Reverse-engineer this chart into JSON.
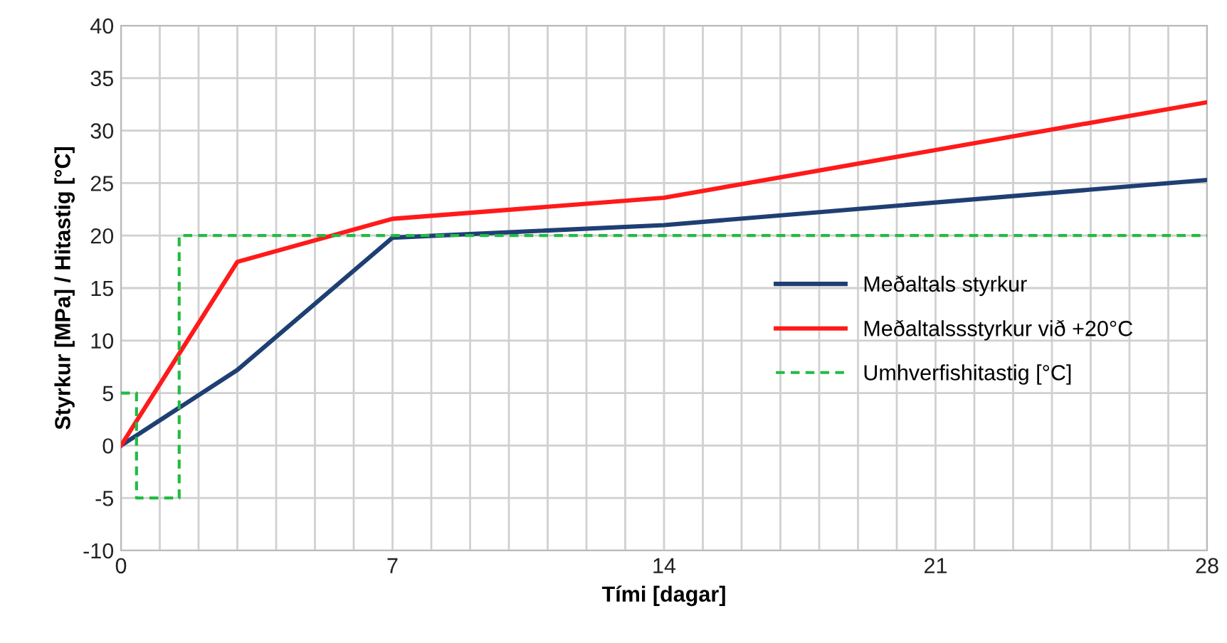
{
  "chart_data": {
    "type": "line",
    "xlabel": "Tími [dagar]",
    "ylabel": "Styrkur [MPa] / Hitastig [°C]",
    "xlim": [
      0,
      28
    ],
    "ylim": [
      -10,
      40
    ],
    "xticks": [
      0,
      {
        "value": 1,
        "label": null
      },
      {
        "value": 2,
        "label": null
      },
      {
        "value": 3,
        "label": null
      },
      {
        "value": 4,
        "label": null
      },
      {
        "value": 5,
        "label": null
      },
      {
        "value": 6,
        "label": null
      },
      7,
      {
        "value": 8,
        "label": null
      },
      {
        "value": 9,
        "label": null
      },
      {
        "value": 10,
        "label": null
      },
      {
        "value": 11,
        "label": null
      },
      {
        "value": 12,
        "label": null
      },
      {
        "value": 13,
        "label": null
      },
      14,
      {
        "value": 15,
        "label": null
      },
      {
        "value": 16,
        "label": null
      },
      {
        "value": 17,
        "label": null
      },
      {
        "value": 18,
        "label": null
      },
      {
        "value": 19,
        "label": null
      },
      {
        "value": 20,
        "label": null
      },
      21,
      {
        "value": 22,
        "label": null
      },
      {
        "value": 23,
        "label": null
      },
      {
        "value": 24,
        "label": null
      },
      {
        "value": 25,
        "label": null
      },
      {
        "value": 26,
        "label": null
      },
      {
        "value": 27,
        "label": null
      },
      28
    ],
    "yticks": [
      -10,
      -5,
      0,
      5,
      10,
      15,
      20,
      25,
      30,
      35,
      40
    ],
    "grid": true,
    "legend": "right",
    "marker": "none",
    "series": [
      {
        "name": "Meðaltals styrkur",
        "color": "#1f3f73",
        "x": [
          0,
          3,
          7,
          14,
          28
        ],
        "values": [
          0,
          7.2,
          19.8,
          21,
          25.3
        ],
        "line_style": "solid"
      },
      {
        "name": "Meðaltalssstyrkur við +20°C",
        "color": "#ff1a1a",
        "x": [
          0,
          3,
          7,
          14,
          28
        ],
        "values": [
          0,
          17.5,
          21.6,
          23.6,
          32.7
        ],
        "line_style": "solid"
      },
      {
        "name": "Umhverfishitastig [°C]",
        "color": "#22bb44",
        "x": [
          0,
          0.4,
          0.4,
          1.5,
          1.5,
          28
        ],
        "values": [
          5,
          5,
          -5,
          -5,
          20,
          20
        ],
        "line_style": "dashed"
      }
    ]
  }
}
